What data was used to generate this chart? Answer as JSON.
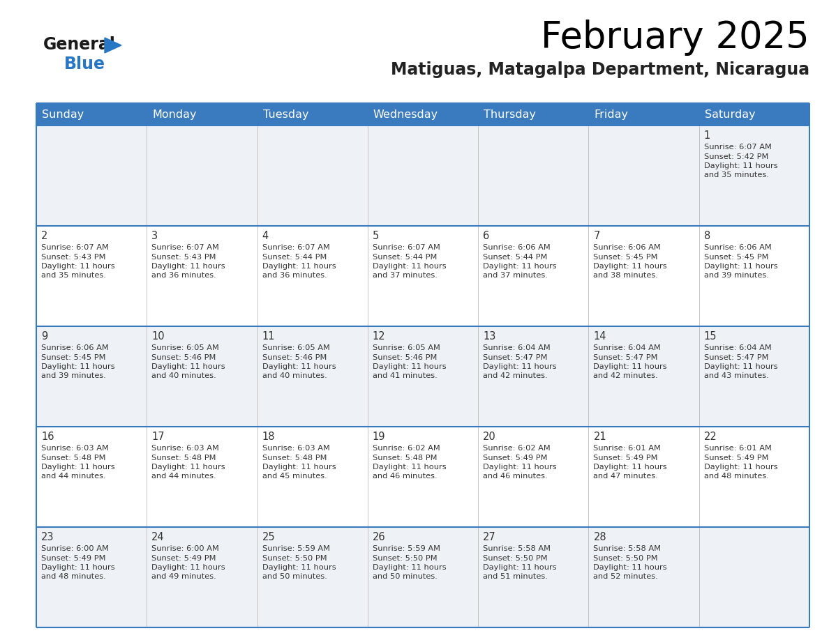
{
  "title": "February 2025",
  "subtitle": "Matiguas, Matagalpa Department, Nicaragua",
  "header_bg": "#3a7abf",
  "header_text_color": "#ffffff",
  "cell_bg_light": "#eef2f7",
  "cell_bg_white": "#ffffff",
  "grid_line_color": "#3a7abf",
  "cell_border_color": "#cccccc",
  "day_headers": [
    "Sunday",
    "Monday",
    "Tuesday",
    "Wednesday",
    "Thursday",
    "Friday",
    "Saturday"
  ],
  "calendar_data": [
    [
      null,
      null,
      null,
      null,
      null,
      null,
      {
        "day": 1,
        "sunrise": "6:07 AM",
        "sunset": "5:42 PM",
        "daylight": "11 hours\nand 35 minutes."
      }
    ],
    [
      {
        "day": 2,
        "sunrise": "6:07 AM",
        "sunset": "5:43 PM",
        "daylight": "11 hours\nand 35 minutes."
      },
      {
        "day": 3,
        "sunrise": "6:07 AM",
        "sunset": "5:43 PM",
        "daylight": "11 hours\nand 36 minutes."
      },
      {
        "day": 4,
        "sunrise": "6:07 AM",
        "sunset": "5:44 PM",
        "daylight": "11 hours\nand 36 minutes."
      },
      {
        "day": 5,
        "sunrise": "6:07 AM",
        "sunset": "5:44 PM",
        "daylight": "11 hours\nand 37 minutes."
      },
      {
        "day": 6,
        "sunrise": "6:06 AM",
        "sunset": "5:44 PM",
        "daylight": "11 hours\nand 37 minutes."
      },
      {
        "day": 7,
        "sunrise": "6:06 AM",
        "sunset": "5:45 PM",
        "daylight": "11 hours\nand 38 minutes."
      },
      {
        "day": 8,
        "sunrise": "6:06 AM",
        "sunset": "5:45 PM",
        "daylight": "11 hours\nand 39 minutes."
      }
    ],
    [
      {
        "day": 9,
        "sunrise": "6:06 AM",
        "sunset": "5:45 PM",
        "daylight": "11 hours\nand 39 minutes."
      },
      {
        "day": 10,
        "sunrise": "6:05 AM",
        "sunset": "5:46 PM",
        "daylight": "11 hours\nand 40 minutes."
      },
      {
        "day": 11,
        "sunrise": "6:05 AM",
        "sunset": "5:46 PM",
        "daylight": "11 hours\nand 40 minutes."
      },
      {
        "day": 12,
        "sunrise": "6:05 AM",
        "sunset": "5:46 PM",
        "daylight": "11 hours\nand 41 minutes."
      },
      {
        "day": 13,
        "sunrise": "6:04 AM",
        "sunset": "5:47 PM",
        "daylight": "11 hours\nand 42 minutes."
      },
      {
        "day": 14,
        "sunrise": "6:04 AM",
        "sunset": "5:47 PM",
        "daylight": "11 hours\nand 42 minutes."
      },
      {
        "day": 15,
        "sunrise": "6:04 AM",
        "sunset": "5:47 PM",
        "daylight": "11 hours\nand 43 minutes."
      }
    ],
    [
      {
        "day": 16,
        "sunrise": "6:03 AM",
        "sunset": "5:48 PM",
        "daylight": "11 hours\nand 44 minutes."
      },
      {
        "day": 17,
        "sunrise": "6:03 AM",
        "sunset": "5:48 PM",
        "daylight": "11 hours\nand 44 minutes."
      },
      {
        "day": 18,
        "sunrise": "6:03 AM",
        "sunset": "5:48 PM",
        "daylight": "11 hours\nand 45 minutes."
      },
      {
        "day": 19,
        "sunrise": "6:02 AM",
        "sunset": "5:48 PM",
        "daylight": "11 hours\nand 46 minutes."
      },
      {
        "day": 20,
        "sunrise": "6:02 AM",
        "sunset": "5:49 PM",
        "daylight": "11 hours\nand 46 minutes."
      },
      {
        "day": 21,
        "sunrise": "6:01 AM",
        "sunset": "5:49 PM",
        "daylight": "11 hours\nand 47 minutes."
      },
      {
        "day": 22,
        "sunrise": "6:01 AM",
        "sunset": "5:49 PM",
        "daylight": "11 hours\nand 48 minutes."
      }
    ],
    [
      {
        "day": 23,
        "sunrise": "6:00 AM",
        "sunset": "5:49 PM",
        "daylight": "11 hours\nand 48 minutes."
      },
      {
        "day": 24,
        "sunrise": "6:00 AM",
        "sunset": "5:49 PM",
        "daylight": "11 hours\nand 49 minutes."
      },
      {
        "day": 25,
        "sunrise": "5:59 AM",
        "sunset": "5:50 PM",
        "daylight": "11 hours\nand 50 minutes."
      },
      {
        "day": 26,
        "sunrise": "5:59 AM",
        "sunset": "5:50 PM",
        "daylight": "11 hours\nand 50 minutes."
      },
      {
        "day": 27,
        "sunrise": "5:58 AM",
        "sunset": "5:50 PM",
        "daylight": "11 hours\nand 51 minutes."
      },
      {
        "day": 28,
        "sunrise": "5:58 AM",
        "sunset": "5:50 PM",
        "daylight": "11 hours\nand 52 minutes."
      },
      null
    ]
  ],
  "logo_general_color": "#1a1a1a",
  "logo_blue_color": "#2777c4",
  "logo_triangle_color": "#2777c4",
  "title_fontsize": 38,
  "subtitle_fontsize": 17,
  "header_fontsize": 11.5,
  "day_num_fontsize": 10.5,
  "info_fontsize": 8.2
}
